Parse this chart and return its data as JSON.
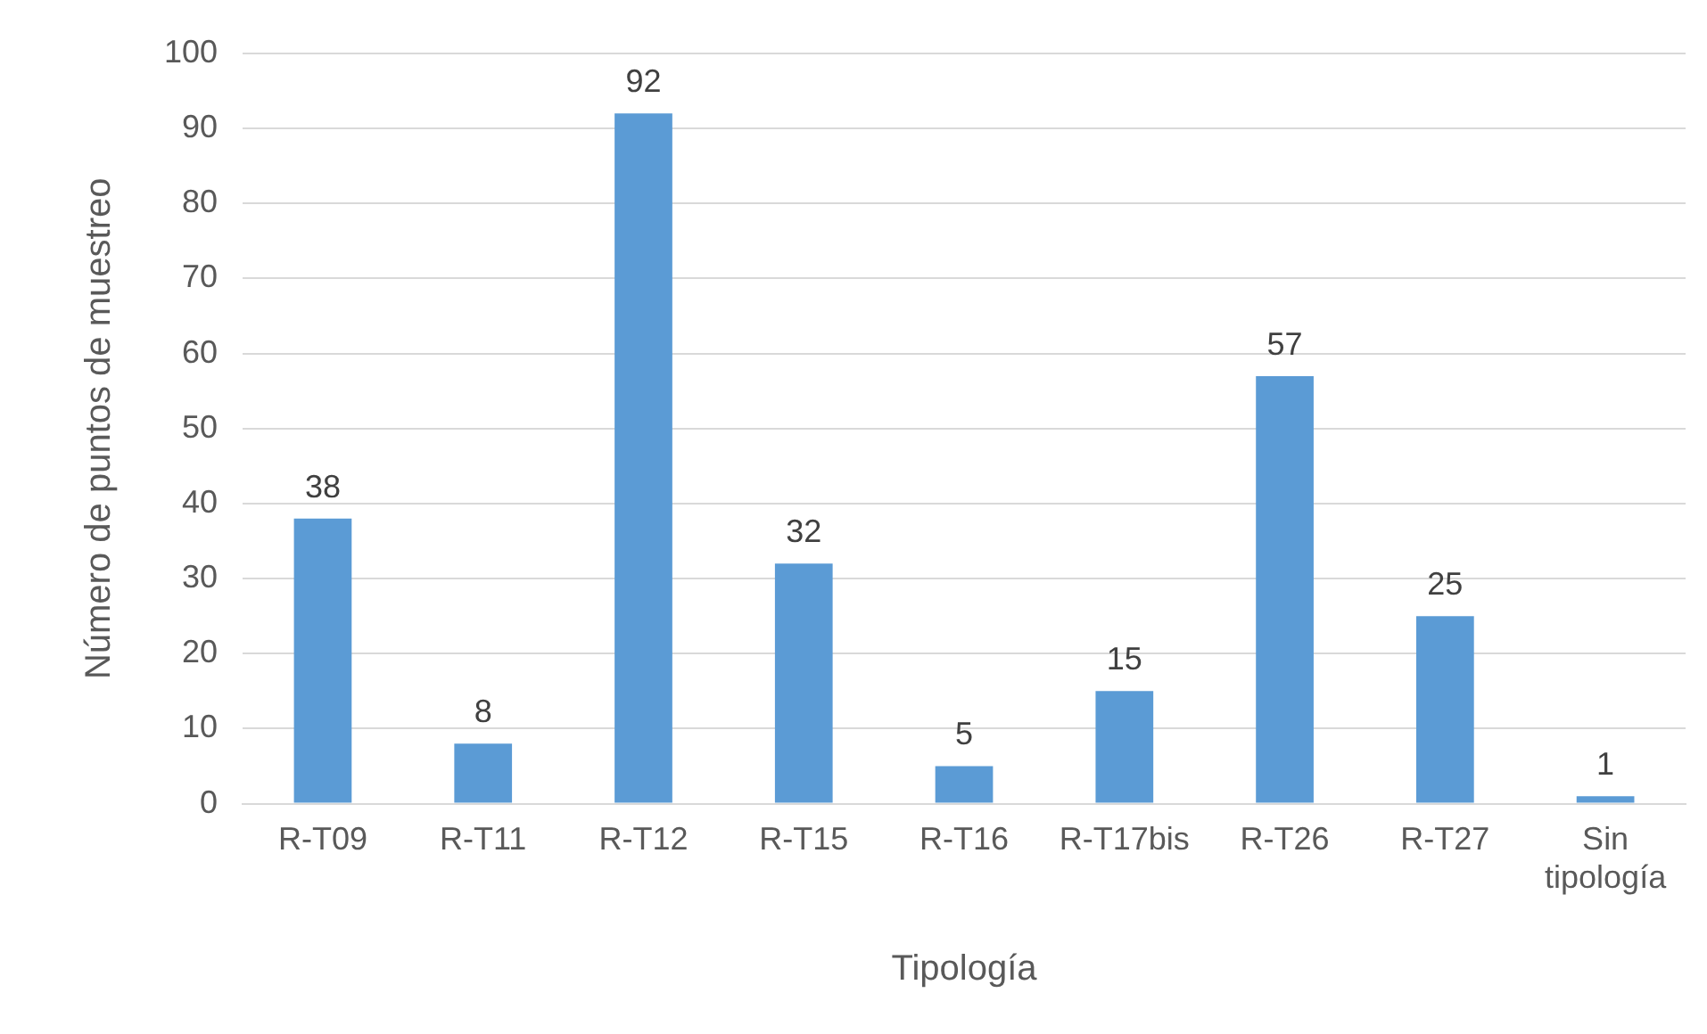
{
  "chart_data": {
    "type": "bar",
    "xlabel": "Tipología",
    "ylabel": "Número de puntos de muestreo",
    "categories": [
      "R-T09",
      "R-T11",
      "R-T12",
      "R-T15",
      "R-T16",
      "R-T17bis",
      "R-T26",
      "R-T27",
      "Sin tipología"
    ],
    "values": [
      38,
      8,
      92,
      32,
      5,
      15,
      57,
      25,
      1
    ],
    "color": "#5b9bd5",
    "ylim": [
      0,
      100
    ],
    "yticks": [
      0,
      10,
      20,
      30,
      40,
      50,
      60,
      70,
      80,
      90,
      100
    ],
    "grid": "y",
    "legend": false,
    "data_labels": true
  }
}
